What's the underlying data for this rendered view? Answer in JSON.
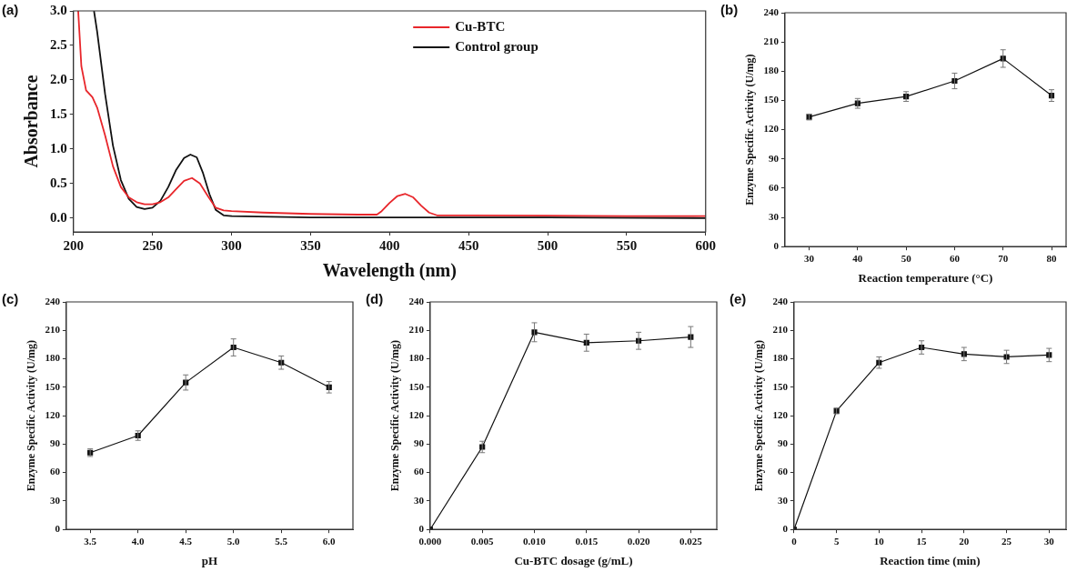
{
  "chart_data": [
    {
      "type": "line",
      "title": "(a)",
      "xlabel": "Wavelength (nm)",
      "ylabel": "Absorbance",
      "xlim": [
        200,
        600
      ],
      "xticks": [
        200,
        250,
        300,
        350,
        400,
        450,
        500,
        550,
        600
      ],
      "ylim": [
        -0.2,
        3.0
      ],
      "yticks": [
        {
          "value": 0,
          "label": "0.0"
        },
        0.5,
        {
          "value": 1,
          "label": "1.0"
        },
        1.5,
        {
          "value": 2,
          "label": "2.0"
        },
        2.5,
        {
          "value": 3,
          "label": "3.0"
        }
      ],
      "grid": false,
      "legend": "top right",
      "marker": "none",
      "line_style": "solid",
      "series": [
        {
          "name": "Cu-BTC",
          "color": "#e8262b",
          "x": [
            203,
            205,
            208,
            212,
            215,
            220,
            225,
            230,
            235,
            240,
            245,
            250,
            255,
            260,
            265,
            270,
            275,
            280,
            285,
            290,
            295,
            300,
            320,
            350,
            380,
            392,
            395,
            400,
            405,
            410,
            415,
            420,
            425,
            430,
            450,
            500,
            550,
            600
          ],
          "values": [
            3.0,
            2.2,
            1.85,
            1.75,
            1.6,
            1.2,
            0.75,
            0.45,
            0.3,
            0.23,
            0.2,
            0.2,
            0.23,
            0.3,
            0.42,
            0.54,
            0.58,
            0.5,
            0.32,
            0.15,
            0.11,
            0.1,
            0.08,
            0.06,
            0.05,
            0.05,
            0.1,
            0.22,
            0.32,
            0.35,
            0.3,
            0.18,
            0.08,
            0.04,
            0.04,
            0.035,
            0.03,
            0.03
          ]
        },
        {
          "name": "Control group",
          "color": "#111111",
          "x": [
            213,
            215,
            220,
            225,
            230,
            235,
            240,
            245,
            250,
            255,
            260,
            265,
            270,
            274,
            278,
            282,
            286,
            290,
            295,
            300,
            350,
            400,
            500,
            600
          ],
          "values": [
            3.0,
            2.7,
            1.8,
            1.05,
            0.55,
            0.28,
            0.16,
            0.13,
            0.15,
            0.25,
            0.45,
            0.7,
            0.87,
            0.92,
            0.88,
            0.65,
            0.35,
            0.12,
            0.04,
            0.03,
            0.01,
            0.01,
            0.01,
            0.0
          ]
        }
      ]
    },
    {
      "type": "line",
      "title": "(b)",
      "xlabel": "Reaction temperature (°C)",
      "ylabel": "Enzyme Specific Activity (U/mg)",
      "x": [
        30,
        40,
        50,
        60,
        70,
        80
      ],
      "xlim": [
        25,
        83
      ],
      "xticks": [
        30,
        40,
        50,
        60,
        70,
        80
      ],
      "ylim": [
        0,
        240
      ],
      "yticks": [
        0,
        30,
        60,
        90,
        120,
        150,
        180,
        210,
        240
      ],
      "grid": false,
      "marker": "square",
      "line_style": "solid",
      "series": [
        {
          "color": "#111111",
          "values": [
            133,
            147,
            154,
            170,
            193,
            155
          ],
          "errors": [
            3,
            5,
            5,
            8,
            9,
            6
          ]
        }
      ]
    },
    {
      "type": "line",
      "title": "(c)",
      "xlabel": "pH",
      "ylabel": "Enzyme Specific Activity (U/mg)",
      "x": [
        3.5,
        4.0,
        4.5,
        5.0,
        5.5,
        6.0
      ],
      "xlim": [
        3.25,
        6.25
      ],
      "xticks": [
        {
          "value": 3.5,
          "label": "3.5"
        },
        {
          "value": 4,
          "label": "4.0"
        },
        {
          "value": 4.5,
          "label": "4.5"
        },
        {
          "value": 5,
          "label": "5.0"
        },
        {
          "value": 5.5,
          "label": "5.5"
        },
        {
          "value": 6,
          "label": "6.0"
        }
      ],
      "ylim": [
        0,
        240
      ],
      "yticks": [
        0,
        30,
        60,
        90,
        120,
        150,
        180,
        210,
        240
      ],
      "grid": false,
      "marker": "square",
      "line_style": "solid",
      "series": [
        {
          "color": "#111111",
          "values": [
            81,
            99,
            155,
            192,
            176,
            150
          ],
          "errors": [
            4,
            5,
            8,
            9,
            7,
            6
          ]
        }
      ]
    },
    {
      "type": "line",
      "title": "(d)",
      "xlabel": "Cu-BTC dosage (g/mL)",
      "ylabel": "Enzyme Specific Activity (U/mg)",
      "x": [
        0,
        0.005,
        0.01,
        0.015,
        0.02,
        0.025
      ],
      "xlim": [
        0,
        0.0275
      ],
      "xticks": [
        {
          "value": 0,
          "label": "0.000"
        },
        {
          "value": 0.005,
          "label": "0.005"
        },
        {
          "value": 0.01,
          "label": "0.010"
        },
        {
          "value": 0.015,
          "label": "0.015"
        },
        {
          "value": 0.02,
          "label": "0.020"
        },
        {
          "value": 0.025,
          "label": "0.025"
        }
      ],
      "ylim": [
        0,
        240
      ],
      "yticks": [
        0,
        30,
        60,
        90,
        120,
        150,
        180,
        210,
        240
      ],
      "grid": false,
      "marker": "square",
      "line_style": "solid",
      "series": [
        {
          "color": "#111111",
          "values": [
            0,
            87,
            208,
            197,
            199,
            203
          ],
          "errors": [
            null,
            6,
            10,
            9,
            9,
            11
          ]
        }
      ]
    },
    {
      "type": "line",
      "title": "(e)",
      "xlabel": "Reaction time (min)",
      "ylabel": "Enzyme Specific Activity (U/mg)",
      "x": [
        0,
        5,
        10,
        15,
        20,
        25,
        30
      ],
      "xlim": [
        0,
        32
      ],
      "xticks": [
        0,
        5,
        10,
        15,
        20,
        25,
        30
      ],
      "ylim": [
        0,
        240
      ],
      "yticks": [
        0,
        30,
        60,
        90,
        120,
        150,
        180,
        210,
        240
      ],
      "grid": false,
      "marker": "square",
      "line_style": "solid",
      "series": [
        {
          "color": "#111111",
          "values": [
            0,
            125,
            176,
            192,
            185,
            182,
            184
          ],
          "errors": [
            null,
            3,
            6,
            7,
            7,
            7,
            7
          ]
        }
      ]
    }
  ]
}
